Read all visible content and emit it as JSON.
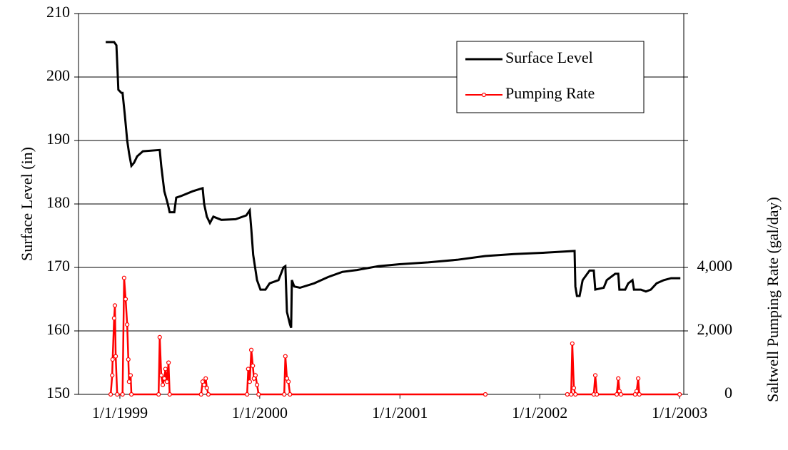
{
  "chart_data": {
    "type": "line",
    "y_label": "Surface Level (in)",
    "y2_label": "Saltwell Pumping Rate (gal/day)",
    "xlim": [
      "1998-09-15",
      "2003-01-12"
    ],
    "xticks": [
      {
        "value": "1999-01-01",
        "label": "1/1/1999"
      },
      {
        "value": "2000-01-01",
        "label": "1/1/2000"
      },
      {
        "value": "2001-01-01",
        "label": "1/1/2001"
      },
      {
        "value": "2002-01-01",
        "label": "1/1/2002"
      },
      {
        "value": "2003-01-01",
        "label": "1/1/2003"
      }
    ],
    "ylim": [
      150,
      210
    ],
    "yticks": [
      150,
      160,
      170,
      180,
      190,
      200,
      210
    ],
    "y2lim": [
      0,
      12000
    ],
    "y2ticks": [
      0,
      {
        "value": 2000,
        "label": "2,000"
      },
      {
        "value": 4000,
        "label": "4,000"
      }
    ],
    "grid": true,
    "legend": "upper right",
    "series": [
      {
        "name": "Surface Level",
        "color": "#000000",
        "marker": false,
        "x": [
          "1998-11-25",
          "1998-12-17",
          "1998-12-23",
          "1998-12-26",
          "1998-12-28",
          "1999-01-05",
          "1999-01-08",
          "1999-01-14",
          "1999-01-20",
          "1999-01-25",
          "1999-01-31",
          "1999-02-07",
          "1999-02-15",
          "1999-03-02",
          "1999-04-15",
          "1999-04-19",
          "1999-04-27",
          "1999-05-06",
          "1999-05-11",
          "1999-05-23",
          "1999-05-28",
          "1999-06-12",
          "1999-07-10",
          "1999-08-05",
          "1999-08-09",
          "1999-08-16",
          "1999-08-24",
          "1999-09-02",
          "1999-09-23",
          "1999-10-30",
          "1999-11-27",
          "1999-12-06",
          "1999-12-10",
          "1999-12-15",
          "1999-12-25",
          "2000-01-03",
          "2000-01-16",
          "2000-01-27",
          "2000-02-19",
          "2000-03-03",
          "2000-03-08",
          "2000-03-12",
          "2000-03-20",
          "2000-03-23",
          "2000-03-25",
          "2000-03-31",
          "2000-04-15",
          "2000-05-22",
          "2000-06-28",
          "2000-08-04",
          "2000-09-11",
          "2000-11-06",
          "2000-12-31",
          "2001-03-16",
          "2001-05-30",
          "2001-08-12",
          "2001-10-26",
          "2002-01-08",
          "2002-03-05",
          "2002-04-02",
          "2002-04-04",
          "2002-04-08",
          "2002-04-15",
          "2002-04-23",
          "2002-05-11",
          "2002-05-22",
          "2002-05-26",
          "2002-06-17",
          "2002-06-25",
          "2002-07-17",
          "2002-07-25",
          "2002-07-28",
          "2002-08-12",
          "2002-08-20",
          "2002-08-31",
          "2002-09-04",
          "2002-09-22",
          "2002-10-05",
          "2002-10-18",
          "2002-11-02",
          "2002-11-21",
          "2002-12-10",
          "2003-01-03"
        ],
        "values": [
          205.5,
          205.5,
          205,
          201,
          198,
          197.5,
          197.5,
          194,
          190,
          188,
          186,
          186.5,
          187.5,
          188.3,
          188.5,
          186,
          182,
          180,
          178.7,
          178.7,
          181,
          181.3,
          182,
          182.5,
          180,
          178,
          177,
          178,
          177.5,
          177.6,
          178.2,
          179,
          176,
          172,
          168,
          166.5,
          166.5,
          167.5,
          168,
          170,
          170.2,
          163,
          161,
          160.5,
          168,
          167,
          166.8,
          167.5,
          168.5,
          169.3,
          169.6,
          170.2,
          170.5,
          170.8,
          171.2,
          171.8,
          172.1,
          172.3,
          172.5,
          172.6,
          167,
          165.5,
          165.5,
          168,
          169.5,
          169.5,
          166.5,
          166.8,
          168,
          169,
          169,
          166.5,
          166.5,
          167.5,
          168,
          166.5,
          166.5,
          166.2,
          166.5,
          167.5,
          168,
          168.3,
          168.3
        ]
      },
      {
        "name": "Pumping Rate",
        "color": "#ff0000",
        "axis": "y2",
        "marker": true,
        "x": [
          "1998-12-08",
          "1998-12-12",
          "1998-12-13",
          "1998-12-17",
          "1998-12-19",
          "1998-12-21",
          "1998-12-25",
          "1999-01-08",
          "1999-01-12",
          "1999-01-16",
          "1999-01-20",
          "1999-01-23",
          "1999-01-25",
          "1999-01-29",
          "1999-01-31",
          "1999-04-12",
          "1999-04-15",
          "1999-04-19",
          "1999-04-23",
          "1999-04-27",
          "1999-04-30",
          "1999-05-04",
          "1999-05-08",
          "1999-05-11",
          "1999-08-01",
          "1999-08-05",
          "1999-08-09",
          "1999-08-13",
          "1999-08-16",
          "1999-08-20",
          "1999-11-29",
          "1999-12-02",
          "1999-12-06",
          "1999-12-10",
          "1999-12-14",
          "1999-12-17",
          "1999-12-21",
          "1999-12-25",
          "1999-12-29",
          "2000-03-05",
          "2000-03-08",
          "2000-03-12",
          "2000-03-16",
          "2000-03-20",
          "2001-08-12",
          "2001-12-01",
          "2002-03-14",
          "2002-03-24",
          "2002-03-27",
          "2002-03-31",
          "2002-04-04",
          "2002-05-22",
          "2002-05-26",
          "2002-05-30",
          "2002-07-21",
          "2002-07-25",
          "2002-07-28",
          "2002-08-01",
          "2002-09-07",
          "2002-09-11",
          "2002-09-15",
          "2002-09-18",
          "2003-01-01"
        ],
        "values": [
          0,
          600,
          1100,
          2400,
          2800,
          1200,
          0,
          0,
          3670,
          3000,
          2200,
          1100,
          400,
          600,
          0,
          0,
          1800,
          600,
          300,
          500,
          800,
          400,
          1000,
          0,
          0,
          400,
          300,
          500,
          200,
          0,
          0,
          800,
          400,
          1400,
          900,
          500,
          600,
          300,
          0,
          0,
          1200,
          500,
          400,
          0,
          0,
          null,
          0,
          0,
          1600,
          200,
          0,
          0,
          600,
          0,
          0,
          500,
          100,
          0,
          0,
          100,
          500,
          0,
          0
        ]
      }
    ]
  }
}
